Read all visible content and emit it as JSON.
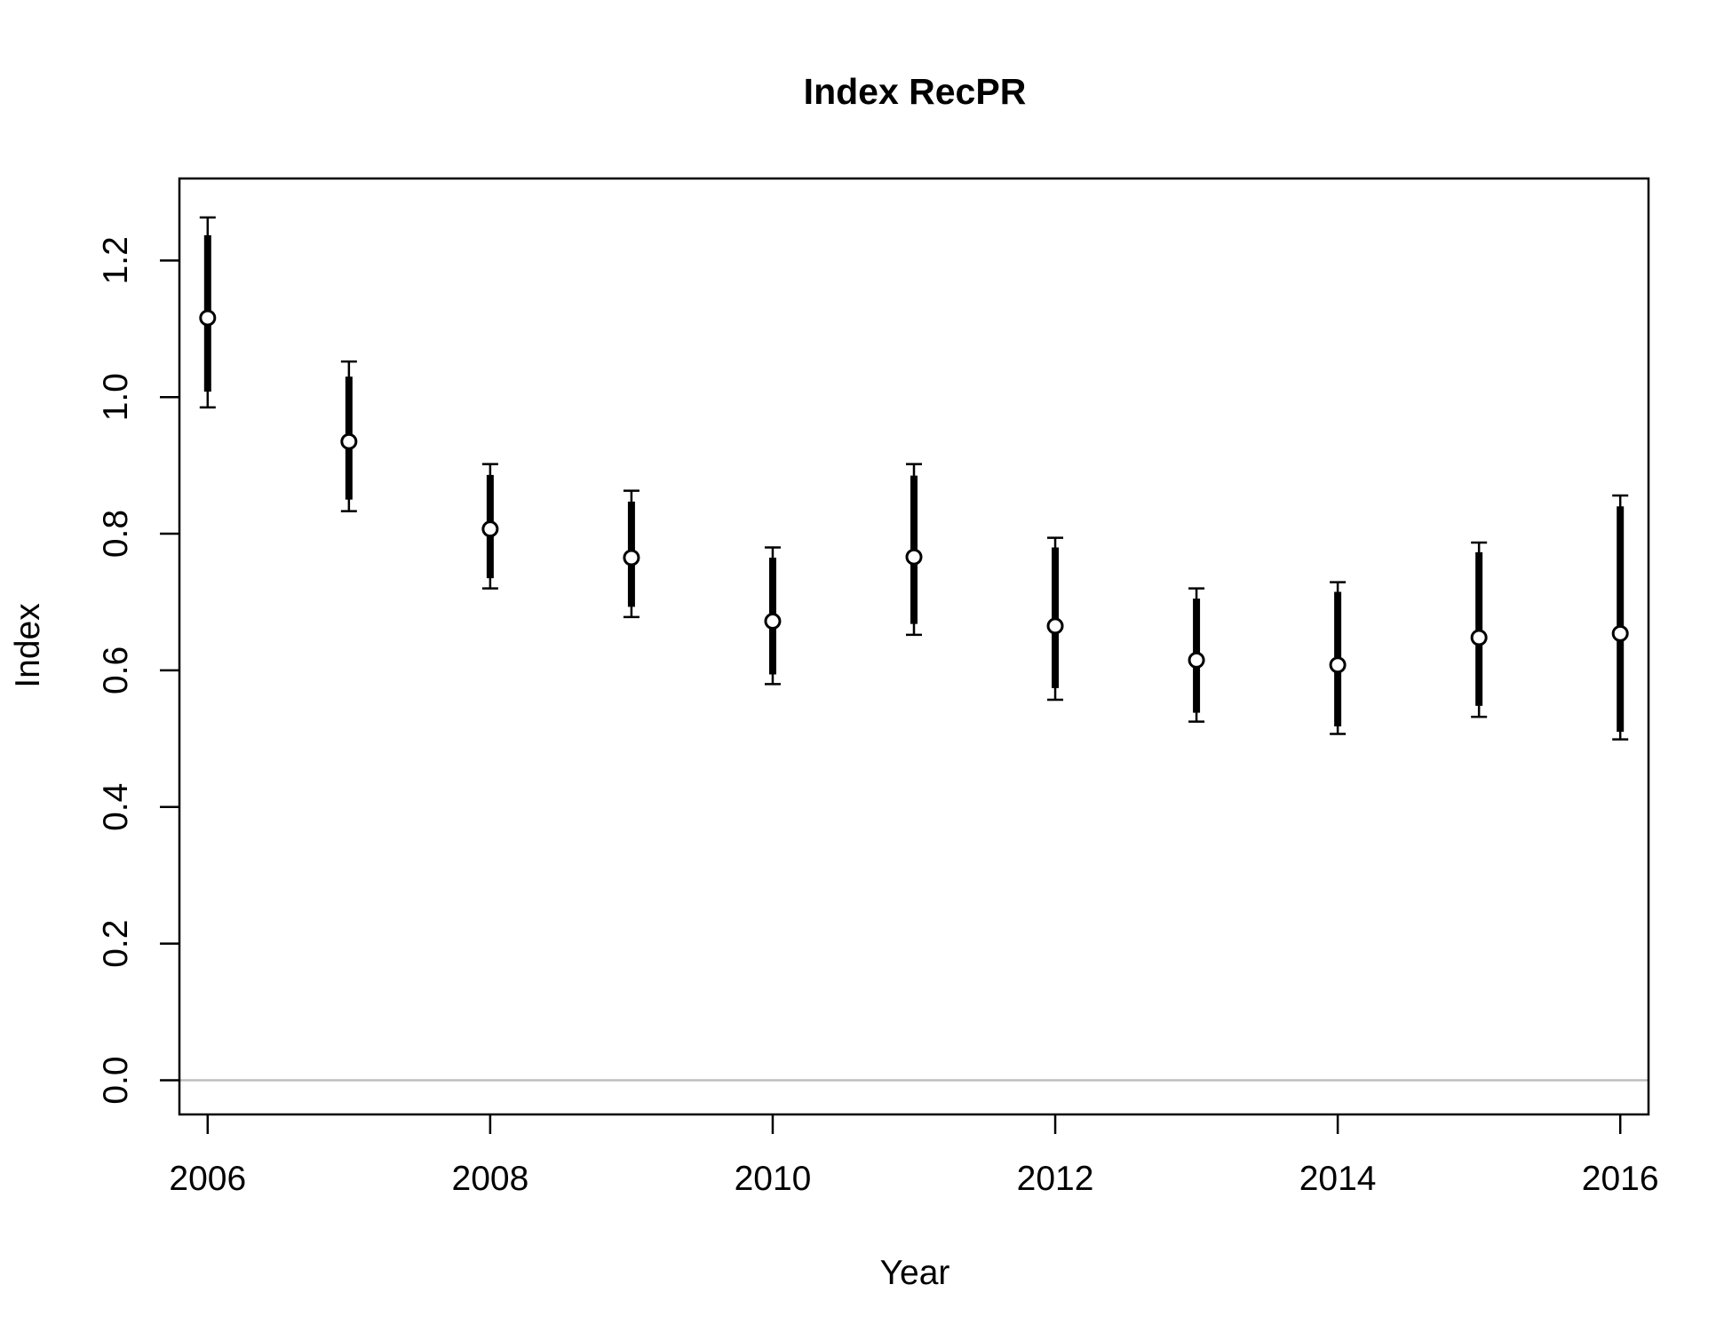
{
  "chart_data": {
    "type": "scatter",
    "title": "Index RecPR",
    "xlabel": "Year",
    "ylabel": "Index",
    "xlim": [
      2005.8,
      2016.2
    ],
    "ylim": [
      -0.05,
      1.32
    ],
    "x_ticks": [
      "2006",
      "2008",
      "2010",
      "2012",
      "2014",
      "2016"
    ],
    "y_ticks": [
      "0.0",
      "0.2",
      "0.4",
      "0.6",
      "0.8",
      "1.0",
      "1.2"
    ],
    "reference_line": 0,
    "grid": false,
    "legend": "none",
    "series": [
      {
        "x": [
          2006,
          2007,
          2008,
          2009,
          2010,
          2011,
          2012,
          2013,
          2014,
          2015,
          2016
        ],
        "y": [
          1.116,
          0.935,
          0.807,
          0.765,
          0.672,
          0.766,
          0.665,
          0.615,
          0.608,
          0.648,
          0.654
        ],
        "outer_lower": [
          0.985,
          0.833,
          0.72,
          0.678,
          0.58,
          0.652,
          0.557,
          0.525,
          0.507,
          0.532,
          0.499
        ],
        "outer_upper": [
          1.263,
          1.052,
          0.902,
          0.863,
          0.78,
          0.902,
          0.794,
          0.72,
          0.729,
          0.787,
          0.856
        ],
        "inner_lower": [
          1.008,
          0.85,
          0.735,
          0.693,
          0.594,
          0.668,
          0.574,
          0.538,
          0.518,
          0.548,
          0.51
        ],
        "inner_upper": [
          1.237,
          1.03,
          0.886,
          0.847,
          0.765,
          0.885,
          0.78,
          0.705,
          0.715,
          0.773,
          0.84
        ]
      }
    ]
  },
  "colors": {
    "axis": "#000000",
    "reference_line": "#bebebe",
    "marker_fill": "#ffffff",
    "interval": "#000000"
  }
}
